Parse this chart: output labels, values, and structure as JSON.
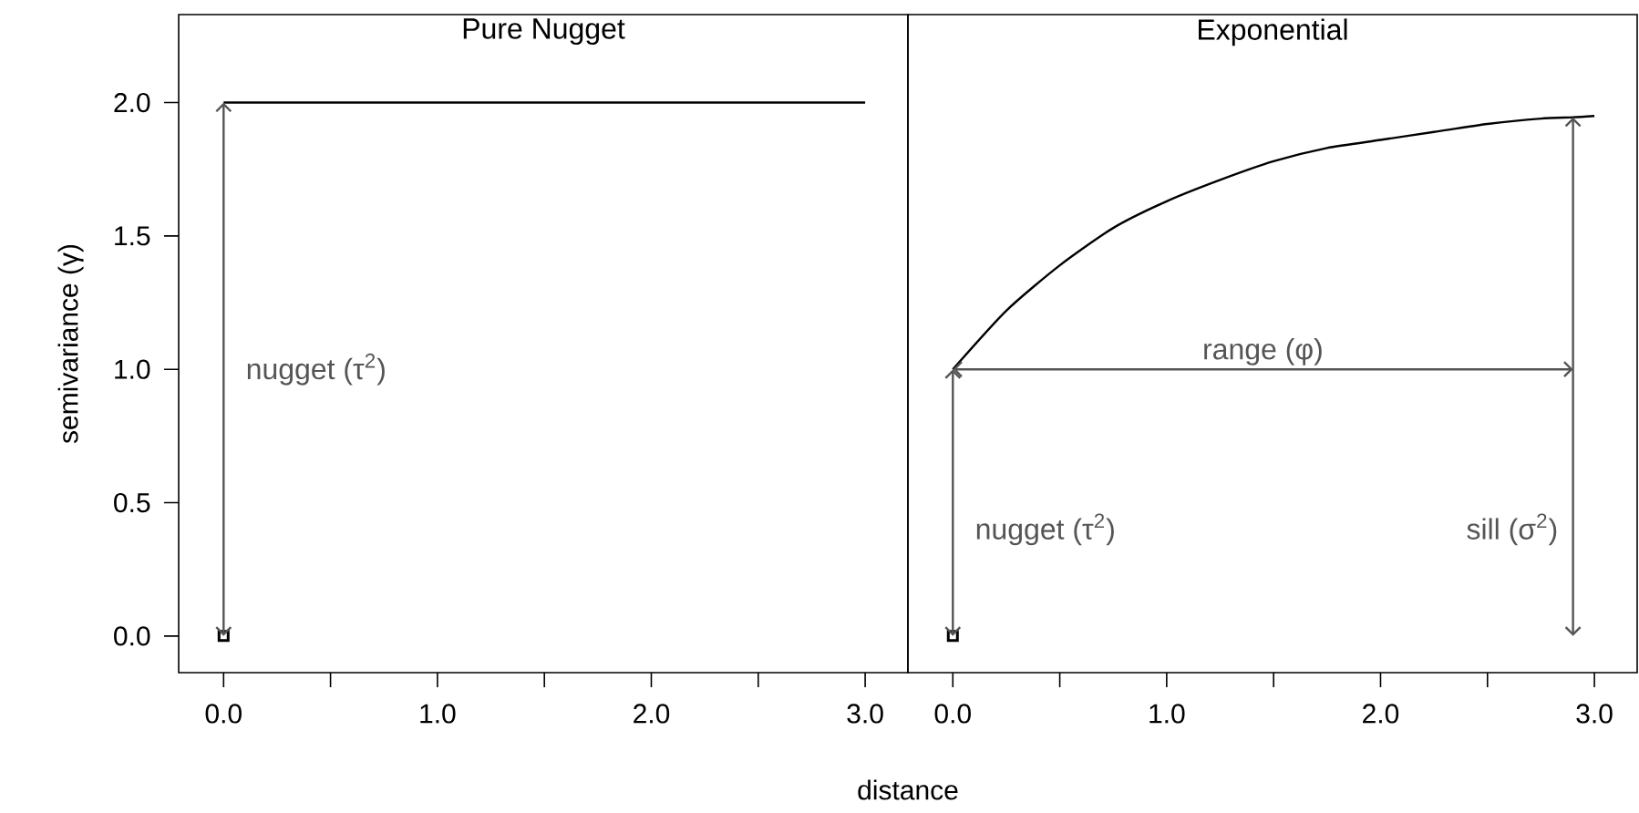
{
  "chart_data": [
    {
      "type": "line",
      "title": "Pure Nugget",
      "ylabel": "semivariance (γ)",
      "x": [
        0,
        3
      ],
      "xlim": [
        -0.21,
        3.2
      ],
      "ylim": [
        -0.137,
        2.33
      ],
      "xticks": [
        {
          "value": 0,
          "label": "0.0"
        },
        {
          "value": 0.5,
          "label": null
        },
        {
          "value": 1,
          "label": "1.0"
        },
        {
          "value": 1.5,
          "label": null
        },
        {
          "value": 2,
          "label": "2.0"
        },
        {
          "value": 2.5,
          "label": null
        },
        {
          "value": 3,
          "label": "3.0"
        }
      ],
      "yticks": [
        {
          "value": 0,
          "label": "0.0"
        },
        {
          "value": 0.5,
          "label": "0.5"
        },
        {
          "value": 1,
          "label": "1.0"
        },
        {
          "value": 1.5,
          "label": "1.5"
        },
        {
          "value": 2,
          "label": "2.0"
        }
      ],
      "series": [
        {
          "color": "#000000",
          "values": [
            2,
            2
          ]
        },
        {
          "type": "scatter",
          "marker": "square",
          "color": "#000000",
          "x": [
            0
          ],
          "values": [
            0
          ]
        }
      ],
      "annotations": [
        "nugget (τ$^{2}$)"
      ]
    },
    {
      "type": "line",
      "title": "Exponential",
      "xlabel": "distance",
      "tick_labels": "x",
      "x": [
        0,
        0.25,
        0.5,
        0.75,
        1,
        1.25,
        1.5,
        1.75,
        2,
        2.25,
        2.5,
        2.75,
        2.9,
        3
      ],
      "xlim": [
        -0.21,
        3.2
      ],
      "ylim": [
        -0.137,
        2.33
      ],
      "xticks": [
        {
          "value": 0,
          "label": "0.0"
        },
        {
          "value": 0.5,
          "label": null
        },
        {
          "value": 1,
          "label": "1.0"
        },
        {
          "value": 1.5,
          "label": null
        },
        {
          "value": 2,
          "label": "2.0"
        },
        {
          "value": 2.5,
          "label": null
        },
        {
          "value": 3,
          "label": "3.0"
        }
      ],
      "series": [
        {
          "color": "#000000",
          "values": [
            1,
            1.22,
            1.39,
            1.53,
            1.63,
            1.71,
            1.78,
            1.83,
            1.86,
            1.89,
            1.92,
            1.94,
            1.945,
            1.95
          ]
        },
        {
          "type": "scatter",
          "marker": "square",
          "color": "#000000",
          "x": [
            0
          ],
          "values": [
            0
          ]
        }
      ],
      "ref_lines": [
        {
          "axis": "x",
          "value": 2.9,
          "label": "sill (σ$^{2}$)",
          "color": "#555555"
        }
      ],
      "annotations": [
        "range (φ)",
        "nugget (τ$^{2}$)"
      ]
    }
  ]
}
